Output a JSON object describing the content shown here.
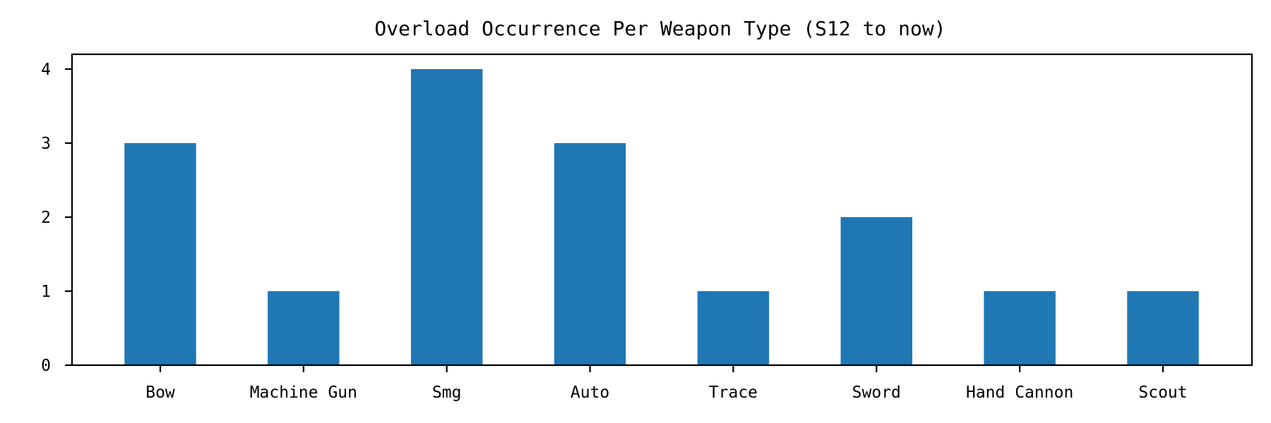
{
  "chart_data": {
    "type": "bar",
    "title": "Overload Occurrence Per Weapon Type (S12 to now)",
    "xlabel": "",
    "ylabel": "",
    "categories": [
      "Bow",
      "Machine Gun",
      "Smg",
      "Auto",
      "Trace",
      "Sword",
      "Hand Cannon",
      "Scout"
    ],
    "values": [
      3,
      1,
      4,
      3,
      1,
      2,
      1,
      1
    ],
    "ylim": [
      0,
      4.2
    ],
    "yticks": [
      0,
      1,
      2,
      3,
      4
    ],
    "grid": false,
    "legend": "none",
    "bar_color": "#1f77b4",
    "axis_color": "#000000"
  }
}
